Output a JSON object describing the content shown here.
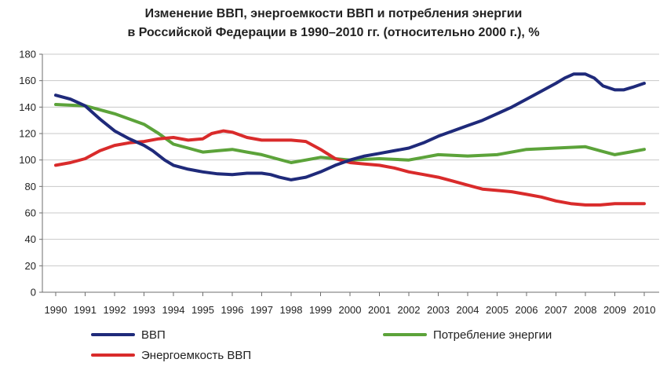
{
  "chart_data": {
    "type": "line",
    "title_line1": "Изменение ВВП, энергоемкости ВВП и потребления энергии",
    "title_line2": "в Российской Федерации в 1990–2010 гг. (относительно 2000 г.), %",
    "xlabel": "",
    "ylabel": "",
    "ylim": [
      0,
      180
    ],
    "yticks": [
      0,
      20,
      40,
      60,
      80,
      100,
      120,
      140,
      160,
      180
    ],
    "xlim": [
      1990,
      2010
    ],
    "xticks": [
      "1990",
      "1991",
      "1992",
      "1993",
      "1994",
      "1995",
      "1996",
      "1997",
      "1998",
      "1999",
      "2000",
      "2001",
      "2002",
      "2003",
      "2004",
      "2005",
      "2006",
      "2007",
      "2008",
      "2009",
      "2010"
    ],
    "grid": "horizontal",
    "legend_placement": "bottom",
    "series": [
      {
        "name": "ВВП",
        "color": "#1f2a7a",
        "points": [
          [
            1990,
            149
          ],
          [
            1990.5,
            146
          ],
          [
            1991,
            141
          ],
          [
            1991.5,
            131
          ],
          [
            1992,
            122
          ],
          [
            1992.5,
            116
          ],
          [
            1993,
            111
          ],
          [
            1993.3,
            107
          ],
          [
            1993.7,
            100
          ],
          [
            1994,
            96
          ],
          [
            1994.5,
            93
          ],
          [
            1995,
            91
          ],
          [
            1995.5,
            89.5
          ],
          [
            1996,
            89
          ],
          [
            1996.5,
            90
          ],
          [
            1997,
            90
          ],
          [
            1997.3,
            89
          ],
          [
            1997.6,
            87
          ],
          [
            1998,
            85
          ],
          [
            1998.5,
            87
          ],
          [
            1999,
            91
          ],
          [
            1999.5,
            96
          ],
          [
            2000,
            100
          ],
          [
            2000.5,
            103
          ],
          [
            2001,
            105
          ],
          [
            2001.5,
            107
          ],
          [
            2002,
            109
          ],
          [
            2002.5,
            113
          ],
          [
            2003,
            118
          ],
          [
            2003.5,
            122
          ],
          [
            2004,
            126
          ],
          [
            2004.5,
            130
          ],
          [
            2005,
            135
          ],
          [
            2005.5,
            140
          ],
          [
            2006,
            146
          ],
          [
            2006.5,
            152
          ],
          [
            2007,
            158
          ],
          [
            2007.3,
            162
          ],
          [
            2007.6,
            165
          ],
          [
            2008,
            165
          ],
          [
            2008.3,
            162
          ],
          [
            2008.6,
            156
          ],
          [
            2009,
            153
          ],
          [
            2009.3,
            153
          ],
          [
            2009.6,
            155
          ],
          [
            2010,
            158
          ]
        ]
      },
      {
        "name": "Потребление энергии",
        "color": "#5ca33a",
        "points": [
          [
            1990,
            142
          ],
          [
            1991,
            141
          ],
          [
            1991.5,
            138
          ],
          [
            1992,
            135
          ],
          [
            1992.5,
            131
          ],
          [
            1993,
            127
          ],
          [
            1993.5,
            120
          ],
          [
            1994,
            112
          ],
          [
            1994.5,
            109
          ],
          [
            1995,
            106
          ],
          [
            1995.5,
            107
          ],
          [
            1996,
            108
          ],
          [
            1996.5,
            106
          ],
          [
            1997,
            104
          ],
          [
            1997.5,
            101
          ],
          [
            1998,
            98
          ],
          [
            1998.5,
            100
          ],
          [
            1999,
            102
          ],
          [
            1999.5,
            101
          ],
          [
            2000,
            100
          ],
          [
            2001,
            101
          ],
          [
            2002,
            100
          ],
          [
            2002.5,
            102
          ],
          [
            2003,
            104
          ],
          [
            2004,
            103
          ],
          [
            2005,
            104
          ],
          [
            2006,
            108
          ],
          [
            2007,
            109
          ],
          [
            2008,
            110
          ],
          [
            2008.5,
            107
          ],
          [
            2009,
            104
          ],
          [
            2009.5,
            106
          ],
          [
            2010,
            108
          ]
        ]
      },
      {
        "name": "Энергоемкость ВВП",
        "color": "#d92b2b",
        "points": [
          [
            1990,
            96
          ],
          [
            1990.5,
            98
          ],
          [
            1991,
            101
          ],
          [
            1991.5,
            107
          ],
          [
            1992,
            111
          ],
          [
            1992.5,
            113
          ],
          [
            1993,
            114
          ],
          [
            1993.5,
            116
          ],
          [
            1994,
            117
          ],
          [
            1994.5,
            115
          ],
          [
            1995,
            116
          ],
          [
            1995.3,
            120
          ],
          [
            1995.7,
            122
          ],
          [
            1996,
            121
          ],
          [
            1996.5,
            117
          ],
          [
            1997,
            115
          ],
          [
            1997.5,
            115
          ],
          [
            1998,
            115
          ],
          [
            1998.5,
            114
          ],
          [
            1999,
            108
          ],
          [
            1999.5,
            101
          ],
          [
            2000,
            98
          ],
          [
            2000.5,
            97
          ],
          [
            2001,
            96
          ],
          [
            2001.5,
            94
          ],
          [
            2002,
            91
          ],
          [
            2002.5,
            89
          ],
          [
            2003,
            87
          ],
          [
            2003.5,
            84
          ],
          [
            2004,
            81
          ],
          [
            2004.5,
            78
          ],
          [
            2005,
            77
          ],
          [
            2005.5,
            76
          ],
          [
            2006,
            74
          ],
          [
            2006.5,
            72
          ],
          [
            2007,
            69
          ],
          [
            2007.5,
            67
          ],
          [
            2008,
            66
          ],
          [
            2008.5,
            66
          ],
          [
            2009,
            67
          ],
          [
            2009.5,
            67
          ],
          [
            2010,
            67
          ]
        ]
      }
    ]
  },
  "legend": {
    "items": [
      {
        "label": "ВВП",
        "color": "#1f2a7a"
      },
      {
        "label": "Потребление энергии",
        "color": "#5ca33a"
      },
      {
        "label": "Энергоемкость ВВП",
        "color": "#d92b2b"
      }
    ]
  }
}
